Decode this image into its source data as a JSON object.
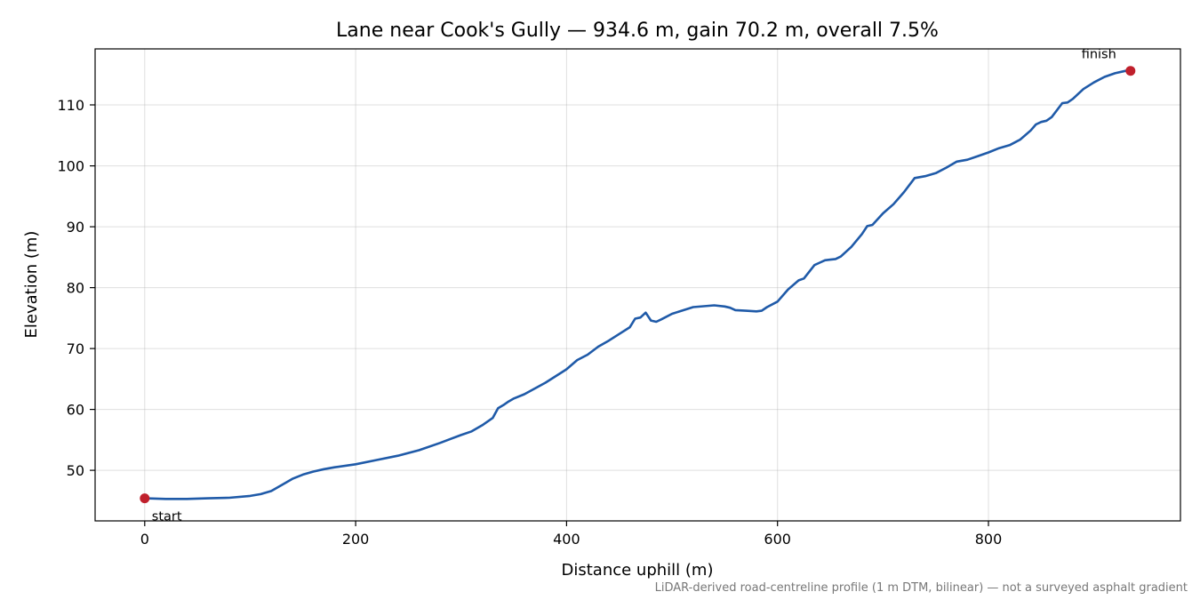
{
  "chart_data": {
    "type": "line",
    "title": "Lane near Cook's Gully — 934.6 m, gain 70.2 m, overall 7.5%",
    "xlabel": "Distance uphill (m)",
    "ylabel": "Elevation (m)",
    "footnote": "LiDAR-derived road-centreline profile (1 m DTM, bilinear) — not a surveyed asphalt gradient",
    "xlim": [
      -47,
      982
    ],
    "ylim": [
      41.7,
      119.2
    ],
    "xticks": [
      0,
      200,
      400,
      600,
      800
    ],
    "yticks": [
      50,
      60,
      70,
      80,
      90,
      100,
      110
    ],
    "grid": true,
    "series": [
      {
        "color": "#1f5aa8",
        "x": [
          0,
          20,
          40,
          60,
          80,
          100,
          110,
          120,
          130,
          140,
          150,
          160,
          170,
          180,
          200,
          220,
          240,
          260,
          280,
          300,
          310,
          320,
          330,
          335,
          340,
          345,
          350,
          360,
          380,
          400,
          410,
          420,
          430,
          440,
          450,
          460,
          465,
          470,
          475,
          480,
          485,
          490,
          500,
          520,
          540,
          550,
          555,
          560,
          570,
          580,
          585,
          590,
          600,
          610,
          620,
          625,
          630,
          635,
          640,
          645,
          650,
          655,
          660,
          670,
          680,
          685,
          690,
          700,
          710,
          720,
          730,
          740,
          750,
          760,
          770,
          780,
          790,
          800,
          810,
          820,
          830,
          840,
          845,
          850,
          855,
          860,
          870,
          875,
          880,
          890,
          900,
          910,
          920,
          930,
          934.6
        ],
        "y": [
          45.4,
          45.3,
          45.3,
          45.4,
          45.5,
          45.8,
          46.1,
          46.6,
          47.6,
          48.6,
          49.3,
          49.8,
          50.2,
          50.5,
          51.0,
          51.7,
          52.4,
          53.3,
          54.5,
          55.8,
          56.4,
          57.4,
          58.6,
          60.2,
          60.7,
          61.3,
          61.8,
          62.5,
          64.4,
          66.6,
          68.1,
          69.0,
          70.3,
          71.3,
          72.4,
          73.5,
          74.9,
          75.1,
          75.9,
          74.6,
          74.4,
          74.8,
          75.7,
          76.8,
          77.1,
          76.9,
          76.7,
          76.3,
          76.2,
          76.1,
          76.2,
          76.8,
          77.7,
          79.7,
          81.2,
          81.5,
          82.6,
          83.7,
          84.1,
          84.5,
          84.6,
          84.7,
          85.1,
          86.7,
          88.8,
          90.1,
          90.3,
          92.2,
          93.7,
          95.7,
          98.0,
          98.3,
          98.8,
          99.7,
          100.7,
          101.0,
          101.6,
          102.2,
          102.9,
          103.4,
          104.3,
          105.8,
          106.8,
          107.2,
          107.4,
          108.0,
          110.3,
          110.4,
          111.0,
          112.6,
          113.7,
          114.6,
          115.2,
          115.6,
          115.6
        ]
      }
    ],
    "points": [
      {
        "x": 0,
        "y": 45.4,
        "label": "start",
        "color": "#c0202c",
        "label_pos": "below-right"
      },
      {
        "x": 934.6,
        "y": 115.6,
        "label": "finish",
        "color": "#c0202c",
        "label_pos": "above-left"
      }
    ]
  }
}
